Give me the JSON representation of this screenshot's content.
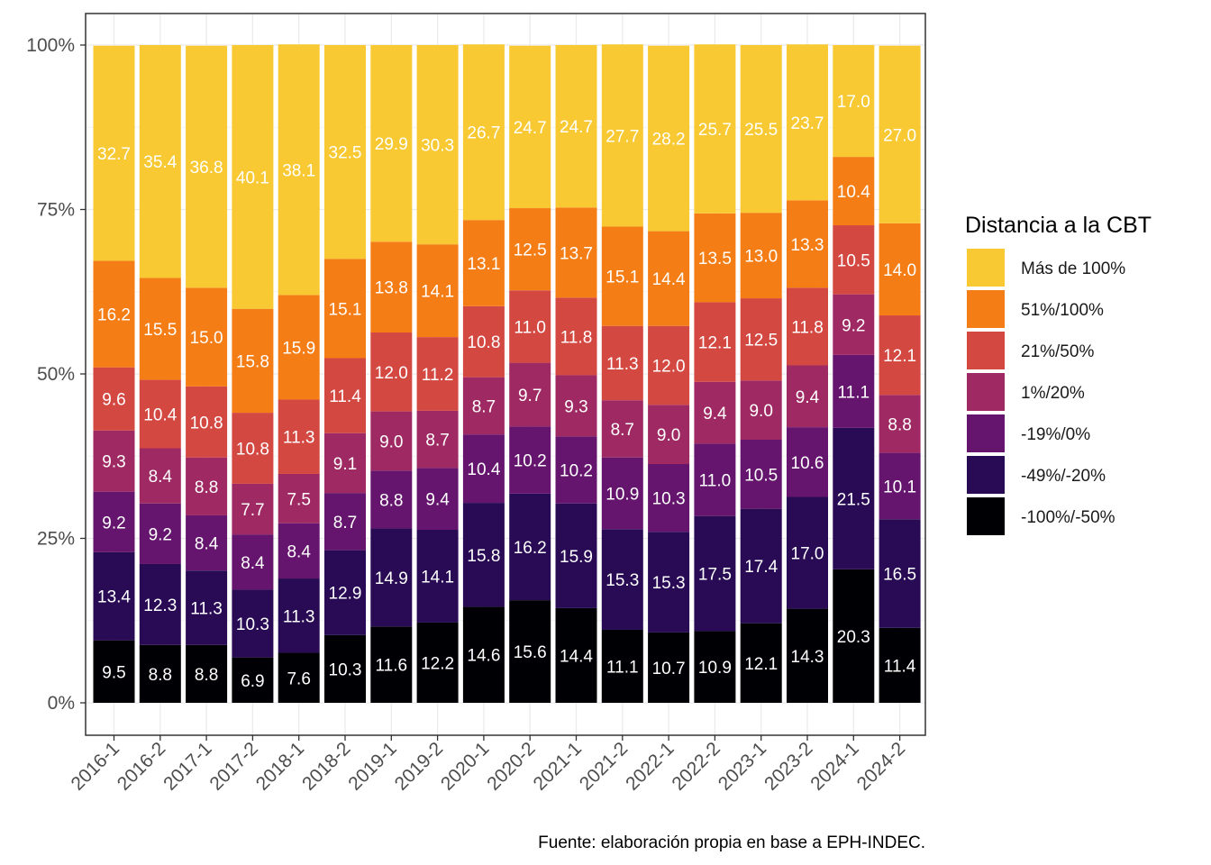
{
  "chart_data": {
    "type": "bar",
    "stacked": true,
    "normalized": true,
    "categories": [
      "2016-1",
      "2016-2",
      "2017-1",
      "2017-2",
      "2018-1",
      "2018-2",
      "2019-1",
      "2019-2",
      "2020-1",
      "2020-2",
      "2021-1",
      "2021-2",
      "2022-1",
      "2022-2",
      "2023-1",
      "2023-2",
      "2024-1",
      "2024-2"
    ],
    "yticks": [
      "0%",
      "25%",
      "50%",
      "75%",
      "100%"
    ],
    "ylim": [
      0,
      100
    ],
    "grid": true,
    "legend": {
      "title": "Distancia a la CBT",
      "position": "right"
    },
    "caption": "Fuente: elaboración propia en base a EPH-INDEC.",
    "series": [
      {
        "name": "-100%/-50%",
        "color": "#000004",
        "values": [
          9.5,
          8.8,
          8.8,
          6.9,
          7.6,
          10.3,
          11.6,
          12.2,
          14.6,
          15.6,
          14.4,
          11.1,
          10.7,
          10.9,
          12.1,
          14.3,
          20.3,
          11.4
        ]
      },
      {
        "name": "-49%/-20%",
        "color": "#280B54",
        "values": [
          13.4,
          12.3,
          11.3,
          10.3,
          11.3,
          12.9,
          14.9,
          14.1,
          15.8,
          16.2,
          15.9,
          15.3,
          15.3,
          17.5,
          17.4,
          17.0,
          21.5,
          16.5
        ]
      },
      {
        "name": "-19%/0%",
        "color": "#65156E",
        "values": [
          9.2,
          9.2,
          8.4,
          8.4,
          8.4,
          8.7,
          8.8,
          9.4,
          10.4,
          10.2,
          10.2,
          10.9,
          10.3,
          11.0,
          10.5,
          10.6,
          11.1,
          10.1
        ]
      },
      {
        "name": "1%/20%",
        "color": "#9F2A63",
        "values": [
          9.3,
          8.4,
          8.8,
          7.7,
          7.5,
          9.1,
          9.0,
          8.7,
          8.7,
          9.7,
          9.3,
          8.7,
          9.0,
          9.4,
          9.0,
          9.4,
          9.2,
          8.8
        ]
      },
      {
        "name": "21%/50%",
        "color": "#D44842",
        "values": [
          9.6,
          10.4,
          10.8,
          10.8,
          11.3,
          11.4,
          12.0,
          11.2,
          10.8,
          11.0,
          11.8,
          11.3,
          12.0,
          12.1,
          12.5,
          11.8,
          10.5,
          12.1
        ]
      },
      {
        "name": "51%/100%",
        "color": "#F57D15",
        "values": [
          16.2,
          15.5,
          15.0,
          15.8,
          15.9,
          15.1,
          13.8,
          14.1,
          13.1,
          12.5,
          13.7,
          15.1,
          14.4,
          13.5,
          13.0,
          13.3,
          10.4,
          14.0
        ]
      },
      {
        "name": "Más de 100%",
        "color": "#F8C932",
        "values": [
          32.7,
          35.4,
          36.8,
          40.1,
          38.1,
          32.5,
          29.9,
          30.3,
          26.7,
          24.7,
          24.7,
          27.7,
          28.2,
          25.7,
          25.5,
          23.7,
          17.0,
          27.0
        ]
      }
    ]
  }
}
